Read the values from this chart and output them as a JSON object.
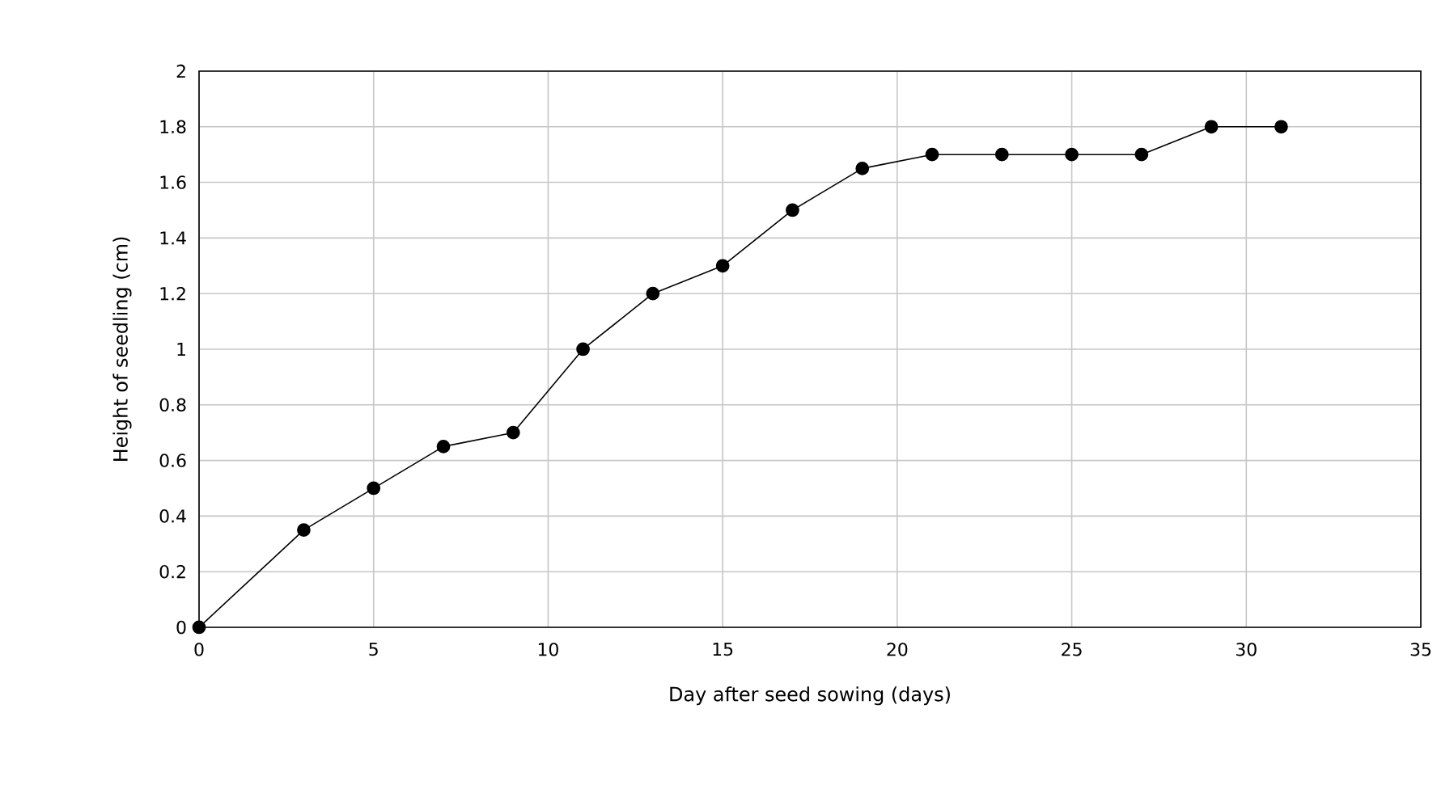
{
  "chart_data": {
    "type": "line",
    "xlabel": "Day after seed sowing (days)",
    "ylabel": "Height of seedling (cm)",
    "x": [
      0,
      3,
      5,
      7,
      9,
      11,
      13,
      15,
      17,
      19,
      21,
      23,
      25,
      27,
      29,
      31
    ],
    "series": [
      {
        "color": "#000000",
        "values": [
          0,
          0.35,
          0.5,
          0.65,
          0.7,
          1.0,
          1.2,
          1.3,
          1.5,
          1.65,
          1.7,
          1.7,
          1.7,
          1.7,
          1.8,
          1.8
        ]
      }
    ],
    "xlim": [
      0,
      35
    ],
    "ylim": [
      0,
      2
    ],
    "xticks": [
      0,
      5,
      10,
      15,
      20,
      25,
      30,
      35
    ],
    "yticks": [
      0,
      0.2,
      0.4,
      0.6,
      0.8,
      1,
      1.2,
      1.4,
      1.6,
      1.8,
      2
    ],
    "grid": true,
    "marker": "circle",
    "line_style": "solid"
  }
}
